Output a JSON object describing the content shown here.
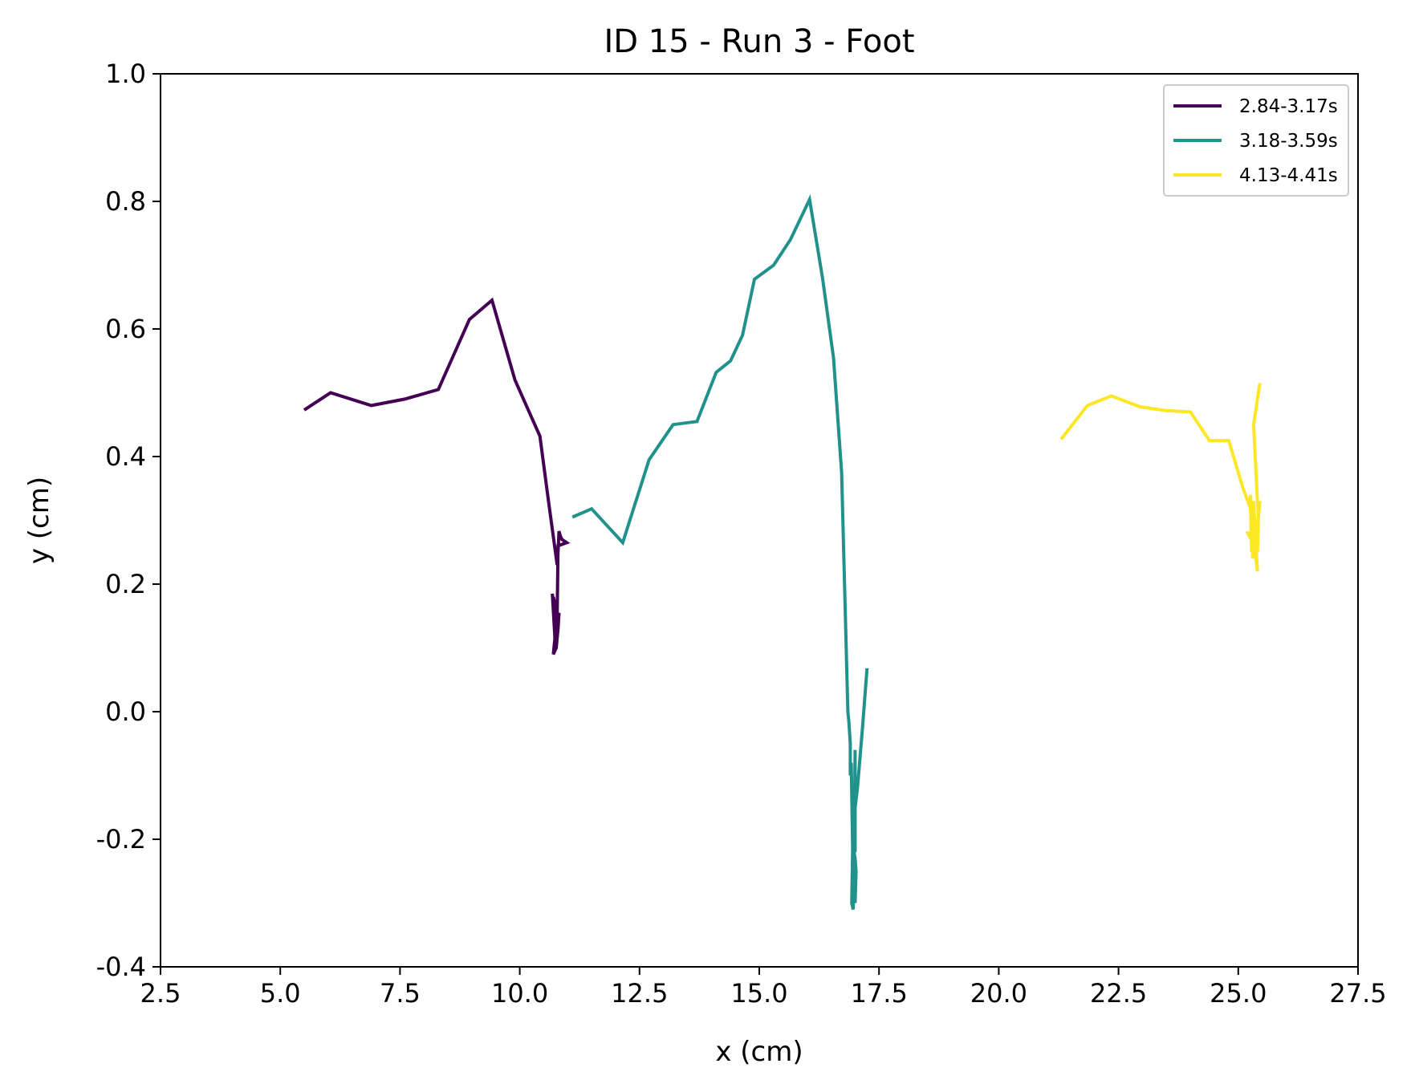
{
  "chart_data": {
    "type": "line",
    "title": "ID 15 - Run 3 - Foot",
    "xlabel": "x (cm)",
    "ylabel": "y (cm)",
    "xlim": [
      2.5,
      27.5
    ],
    "ylim": [
      -0.4,
      1.0
    ],
    "xticks": [
      2.5,
      5.0,
      7.5,
      10.0,
      12.5,
      15.0,
      17.5,
      20.0,
      22.5,
      25.0,
      27.5
    ],
    "xtick_labels": [
      "2.5",
      "5.0",
      "7.5",
      "10.0",
      "12.5",
      "15.0",
      "17.5",
      "20.0",
      "22.5",
      "25.0",
      "27.5"
    ],
    "yticks": [
      -0.4,
      -0.2,
      0.0,
      0.2,
      0.4,
      0.6,
      0.8,
      1.0
    ],
    "ytick_labels": [
      "-0.4",
      "-0.2",
      "0.0",
      "0.2",
      "0.4",
      "0.6",
      "0.8",
      "1.0"
    ],
    "grid": false,
    "legend_position": "top-right",
    "series": [
      {
        "name": "2.84-3.17s",
        "color": "#440154",
        "x": [
          5.5,
          6.05,
          6.9,
          7.6,
          8.3,
          8.95,
          9.42,
          9.9,
          10.42,
          10.6,
          10.78,
          10.8,
          10.82,
          10.85,
          10.88,
          10.92,
          10.98,
          10.8,
          10.78,
          10.8,
          10.76,
          10.7,
          10.74,
          10.76,
          10.7,
          10.78,
          10.82,
          10.8,
          10.74,
          10.73,
          10.68,
          10.72,
          10.77
        ],
        "y": [
          0.473,
          0.5,
          0.48,
          0.49,
          0.505,
          0.615,
          0.645,
          0.52,
          0.432,
          0.33,
          0.23,
          0.25,
          0.283,
          0.275,
          0.27,
          0.268,
          0.265,
          0.26,
          0.15,
          0.13,
          0.1,
          0.09,
          0.12,
          0.16,
          0.18,
          0.14,
          0.155,
          0.13,
          0.1,
          0.12,
          0.185,
          0.14,
          0.11
        ]
      },
      {
        "name": "3.18-3.59s",
        "color": "#21918c",
        "x": [
          11.1,
          11.5,
          12.15,
          12.7,
          13.2,
          13.7,
          14.1,
          14.4,
          14.65,
          14.9,
          15.3,
          15.65,
          16.05,
          16.32,
          16.55,
          16.72,
          16.85,
          16.87,
          16.9,
          16.9,
          16.92,
          16.95,
          17.0,
          17.02,
          17.0,
          16.95,
          16.93,
          16.96,
          16.98,
          17.0,
          17.0,
          16.97,
          17.05,
          17.15,
          17.25
        ],
        "y": [
          0.305,
          0.318,
          0.265,
          0.395,
          0.45,
          0.455,
          0.532,
          0.55,
          0.59,
          0.678,
          0.7,
          0.74,
          0.803,
          0.68,
          0.555,
          0.375,
          0.0,
          -0.015,
          -0.05,
          -0.1,
          -0.08,
          -0.22,
          -0.3,
          -0.25,
          -0.23,
          -0.21,
          -0.3,
          -0.31,
          -0.26,
          -0.06,
          -0.22,
          -0.17,
          -0.12,
          -0.03,
          0.068
        ]
      },
      {
        "name": "4.13-4.41s",
        "color": "#fde725",
        "x": [
          21.3,
          21.85,
          22.35,
          22.95,
          23.5,
          24.0,
          24.4,
          24.8,
          25.1,
          25.3,
          25.3,
          25.32,
          25.4,
          25.35,
          25.45,
          25.38,
          25.33,
          25.28,
          25.25,
          25.35,
          25.2,
          25.4,
          25.42,
          25.32,
          25.38,
          25.45
        ],
        "y": [
          0.427,
          0.48,
          0.495,
          0.478,
          0.472,
          0.47,
          0.425,
          0.425,
          0.35,
          0.31,
          0.24,
          0.33,
          0.22,
          0.25,
          0.33,
          0.28,
          0.26,
          0.25,
          0.34,
          0.28,
          0.28,
          0.25,
          0.3,
          0.45,
          0.48,
          0.515
        ]
      }
    ]
  }
}
